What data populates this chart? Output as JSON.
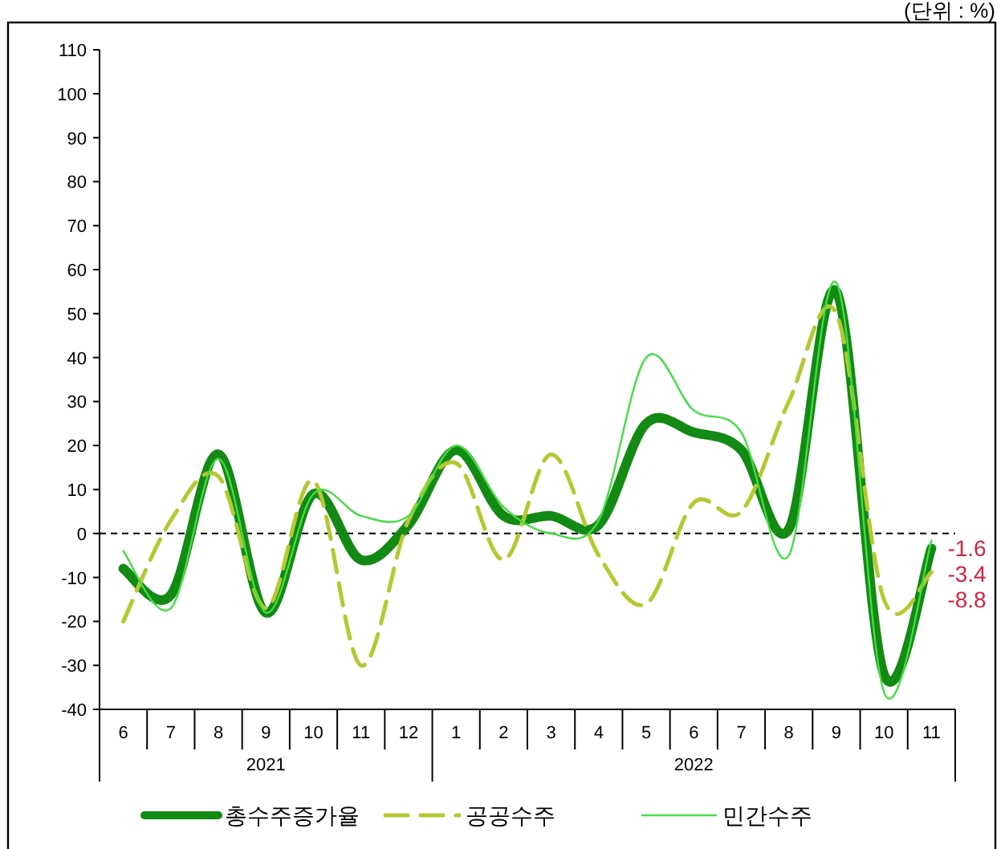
{
  "chart_data": {
    "type": "line",
    "categories": [
      "6",
      "7",
      "8",
      "9",
      "10",
      "11",
      "12",
      "1",
      "2",
      "3",
      "4",
      "5",
      "6",
      "7",
      "8",
      "9",
      "10",
      "11"
    ],
    "series": [
      {
        "name": "총수주증가율",
        "color": "#138a13",
        "values": [
          -8,
          -14,
          18,
          -18,
          9,
          -6,
          2,
          19,
          4,
          4,
          2,
          25,
          23,
          19,
          1,
          55,
          -32,
          -3.4
        ],
        "value_labels": [
          null,
          null,
          null,
          null,
          null,
          null,
          null,
          null,
          null,
          null,
          null,
          null,
          null,
          null,
          null,
          null,
          null,
          "-3.4"
        ]
      },
      {
        "name": "공공수주",
        "color": "#b5c832",
        "line_style": "dashed",
        "values": [
          -20,
          3,
          13,
          -17,
          12,
          -30,
          3,
          16,
          -6,
          18,
          -5,
          -16,
          7,
          5,
          30,
          50,
          -15,
          -8.8
        ],
        "value_labels": [
          null,
          null,
          null,
          null,
          null,
          null,
          null,
          null,
          null,
          null,
          null,
          null,
          null,
          null,
          null,
          null,
          null,
          "-8.8"
        ]
      },
      {
        "name": "민간수주",
        "color": "#44dd44",
        "values": [
          -4,
          -17,
          17,
          -18,
          9,
          4,
          4,
          20,
          6,
          0,
          3,
          40,
          28,
          23,
          -5,
          57,
          -36,
          -1.6
        ],
        "value_labels": [
          null,
          null,
          null,
          null,
          null,
          null,
          null,
          null,
          null,
          null,
          null,
          null,
          null,
          null,
          null,
          null,
          null,
          "-1.6"
        ]
      }
    ],
    "ylim": [
      -40,
      110
    ],
    "yticks": [
      -40,
      -30,
      -20,
      -10,
      0,
      10,
      20,
      30,
      40,
      50,
      60,
      70,
      80,
      90,
      100,
      110
    ],
    "ref_lines": [
      {
        "axis": "y",
        "value": 0,
        "color": "#000000",
        "line_style": "dashed"
      }
    ],
    "annotations": [
      "2021",
      "2022",
      "(단위 : %)"
    ],
    "legend": "bottom",
    "grid": false,
    "marker": "none"
  }
}
